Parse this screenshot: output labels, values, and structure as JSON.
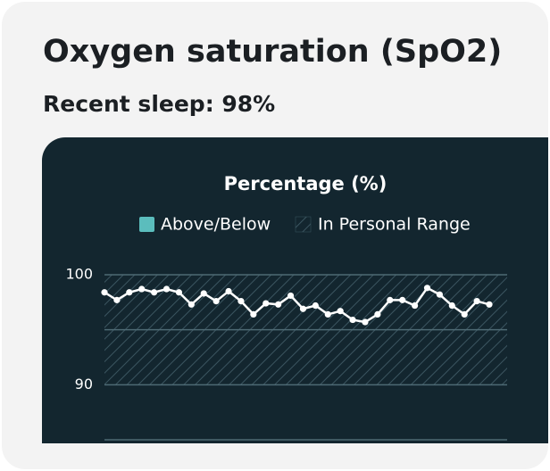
{
  "header": {
    "title": "Oxygen saturation (SpO2)",
    "subtitle": "Recent sleep: 98%"
  },
  "chart_data": {
    "type": "line",
    "title": "Percentage (%)",
    "legend": [
      {
        "name": "Above/Below",
        "color": "#5bbdbd"
      },
      {
        "name": "In Personal Range",
        "range": [
          90,
          100
        ]
      }
    ],
    "values": [
      98.4,
      97.7,
      98.4,
      98.7,
      98.4,
      98.7,
      98.4,
      97.3,
      98.3,
      97.6,
      98.5,
      97.6,
      96.4,
      97.4,
      97.3,
      98.1,
      96.9,
      97.2,
      96.4,
      96.7,
      95.9,
      95.7,
      96.4,
      97.7,
      97.7,
      97.2,
      98.8,
      98.2,
      97.2,
      96.4,
      97.6,
      97.3
    ],
    "color": "#ffffff",
    "ylim": [
      85,
      100
    ],
    "yticks": [
      {
        "value": 85,
        "label": null
      },
      90,
      {
        "value": 95,
        "label": null
      },
      100
    ],
    "grid": true
  }
}
